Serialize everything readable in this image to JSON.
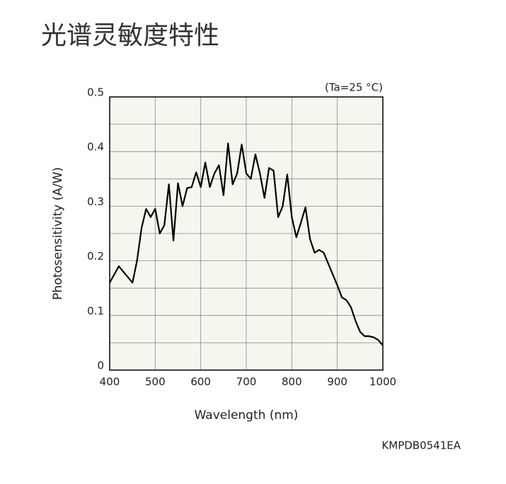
{
  "chart_data": {
    "type": "line",
    "title": "光谱灵敏度特性",
    "annotation": "(Ta=25 °C)",
    "footnote": "KMPDB0541EA",
    "x_label": "Wavelength (nm)",
    "y_label": "Photosensitivity (A/W)",
    "xlim": [
      400,
      1000
    ],
    "xticks": [
      400,
      500,
      600,
      700,
      800,
      900,
      1000
    ],
    "ylim": [
      0,
      0.5
    ],
    "yticks": [
      0,
      0.1,
      0.2,
      0.3,
      0.4,
      0.5
    ],
    "yminor": [
      0.05,
      0.15,
      0.25,
      0.35,
      0.45
    ],
    "grid": true,
    "plot_background": "#f7f6ee",
    "series": [
      {
        "color": "#000000",
        "x": [
          400,
          420,
          450,
          460,
          470,
          480,
          490,
          500,
          510,
          520,
          530,
          540,
          550,
          560,
          570,
          580,
          590,
          600,
          610,
          620,
          630,
          640,
          650,
          660,
          670,
          680,
          690,
          700,
          710,
          720,
          730,
          740,
          750,
          760,
          770,
          780,
          790,
          800,
          810,
          820,
          830,
          840,
          850,
          860,
          870,
          880,
          890,
          900,
          910,
          920,
          930,
          940,
          950,
          960,
          970,
          980,
          990,
          1000
        ],
        "values": [
          0.16,
          0.19,
          0.16,
          0.2,
          0.26,
          0.295,
          0.28,
          0.295,
          0.25,
          0.265,
          0.34,
          0.237,
          0.342,
          0.3,
          0.333,
          0.335,
          0.362,
          0.335,
          0.38,
          0.335,
          0.36,
          0.375,
          0.32,
          0.415,
          0.34,
          0.36,
          0.413,
          0.36,
          0.35,
          0.395,
          0.36,
          0.315,
          0.37,
          0.365,
          0.28,
          0.3,
          0.358,
          0.28,
          0.243,
          0.27,
          0.298,
          0.24,
          0.215,
          0.22,
          0.215,
          0.195,
          0.175,
          0.155,
          0.133,
          0.128,
          0.115,
          0.09,
          0.07,
          0.062,
          0.062,
          0.06,
          0.055,
          0.045
        ]
      }
    ]
  }
}
